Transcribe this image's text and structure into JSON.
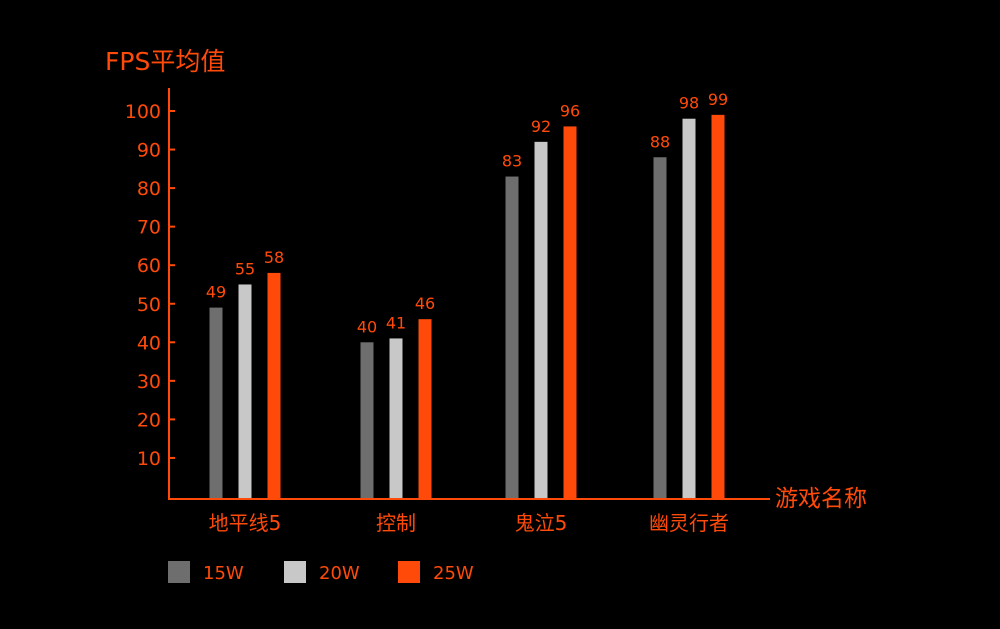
{
  "chart_data": {
    "type": "bar",
    "ylabel": "FPS平均值",
    "xlabel": "游戏名称",
    "categories": [
      "地平线5",
      "控制",
      "鬼泣5",
      "幽灵行者"
    ],
    "series": [
      {
        "name": "15W",
        "values": [
          49,
          40,
          83,
          88
        ],
        "color": "#6e6e6e"
      },
      {
        "name": "20W",
        "values": [
          55,
          41,
          92,
          98
        ],
        "color": "#c8c8c8"
      },
      {
        "name": "25W",
        "values": [
          58,
          46,
          96,
          99
        ],
        "color": "#ff4a0a"
      }
    ],
    "yticks": [
      10,
      20,
      30,
      40,
      50,
      60,
      70,
      80,
      90,
      100
    ],
    "ylim": [
      0,
      100
    ],
    "grid": false,
    "legend_position": "bottom-left",
    "colors": {
      "background": "#000000",
      "axis": "#ff4a0a",
      "text": "#ff4a0a",
      "data_label": "#ff4a0a"
    }
  }
}
